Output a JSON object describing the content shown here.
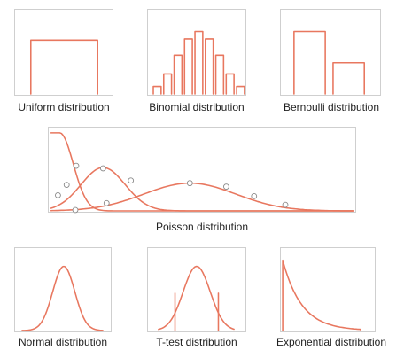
{
  "colors": {
    "accent": "#e8775f",
    "frame": "#cfcfcf",
    "text": "#222222",
    "marker": "#888888"
  },
  "panels": {
    "uniform": {
      "caption": "Uniform distribution"
    },
    "binomial": {
      "caption": "Binomial distribution",
      "bar_heights": [
        0.12,
        0.32,
        0.62,
        0.88,
        1.0,
        0.88,
        0.62,
        0.32,
        0.12
      ]
    },
    "bernoulli": {
      "caption": "Bernoulli distribution",
      "bar_heights": [
        1.0,
        0.5
      ]
    },
    "poisson": {
      "caption": "Poisson distribution"
    },
    "normal": {
      "caption": "Normal distribution"
    },
    "ttest": {
      "caption": "T-test distribution"
    },
    "exponential": {
      "caption": "Exponential distribution"
    }
  }
}
